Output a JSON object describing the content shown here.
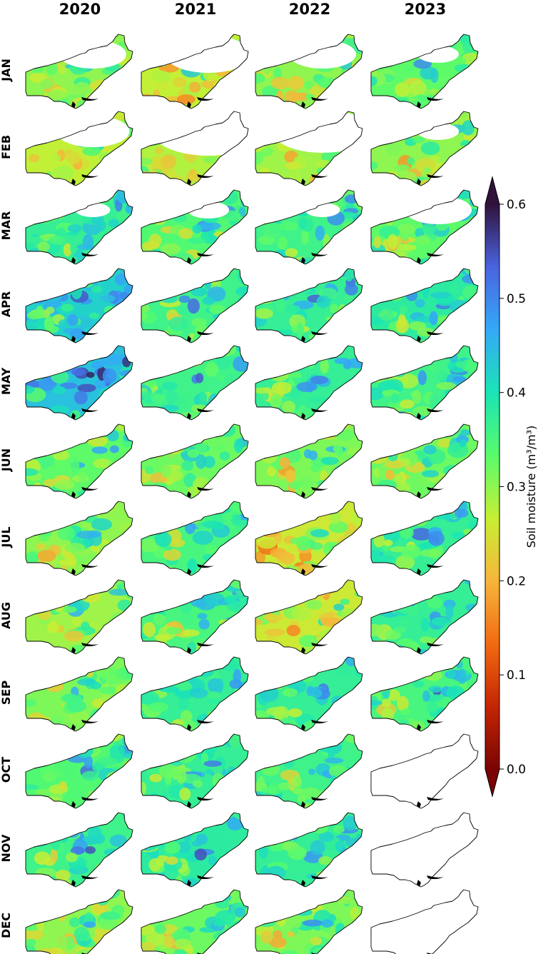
{
  "chart_data": {
    "type": "heatmap",
    "title": "",
    "variable": "Soil moisture",
    "colorbar": {
      "label": "Soil moisture (m³/m³)",
      "min": 0.0,
      "max": 0.6,
      "ticks": [
        "0.0",
        "0.1",
        "0.2",
        "0.3",
        "0.4",
        "0.5",
        "0.6"
      ],
      "extend": "both",
      "colormap": "turbo_r",
      "colors": [
        "#7a0403",
        "#c42503",
        "#f26a11",
        "#f7b53b",
        "#c7ef34",
        "#57fb6c",
        "#1ae4b6",
        "#34a9f8",
        "#4a63e0",
        "#30123b"
      ]
    },
    "columns": [
      "2020",
      "2021",
      "2022",
      "2023"
    ],
    "rows": [
      "JAN",
      "FEB",
      "MAR",
      "APR",
      "MAY",
      "JUN",
      "JUL",
      "AUG",
      "SEP",
      "OCT",
      "NOV",
      "DEC"
    ],
    "monthly_mean_soil_moisture": [
      {
        "month": "JAN",
        "values": [
          0.3,
          0.27,
          0.3,
          0.33
        ]
      },
      {
        "month": "FEB",
        "values": [
          0.27,
          0.28,
          0.29,
          0.3
        ]
      },
      {
        "month": "MAR",
        "values": [
          0.37,
          0.34,
          0.36,
          0.33
        ]
      },
      {
        "month": "APR",
        "values": [
          0.42,
          0.36,
          0.37,
          0.38
        ]
      },
      {
        "month": "MAY",
        "values": [
          0.44,
          0.36,
          0.37,
          0.36
        ]
      },
      {
        "month": "JUN",
        "values": [
          0.33,
          0.32,
          0.31,
          0.32
        ]
      },
      {
        "month": "JUL",
        "values": [
          0.3,
          0.35,
          0.26,
          0.37
        ]
      },
      {
        "month": "AUG",
        "values": [
          0.29,
          0.35,
          0.26,
          0.37
        ]
      },
      {
        "month": "SEP",
        "values": [
          0.31,
          0.37,
          0.37,
          0.35
        ]
      },
      {
        "month": "OCT",
        "values": [
          0.34,
          0.37,
          0.36,
          null
        ]
      },
      {
        "month": "NOV",
        "values": [
          0.36,
          0.38,
          0.37,
          null
        ]
      },
      {
        "month": "DEC",
        "values": [
          0.3,
          0.32,
          0.31,
          null
        ]
      }
    ],
    "snow_masked_fraction": [
      {
        "month": "JAN",
        "values": [
          0.3,
          0.45,
          0.3,
          0.1
        ]
      },
      {
        "month": "FEB",
        "values": [
          0.35,
          0.65,
          0.55,
          0.1
        ]
      },
      {
        "month": "MAR",
        "values": [
          0.05,
          0.1,
          0.05,
          0.3
        ]
      }
    ],
    "no_data": [
      {
        "month": "OCT",
        "year": "2023"
      },
      {
        "month": "NOV",
        "year": "2023"
      },
      {
        "month": "DEC",
        "year": "2023"
      }
    ]
  }
}
